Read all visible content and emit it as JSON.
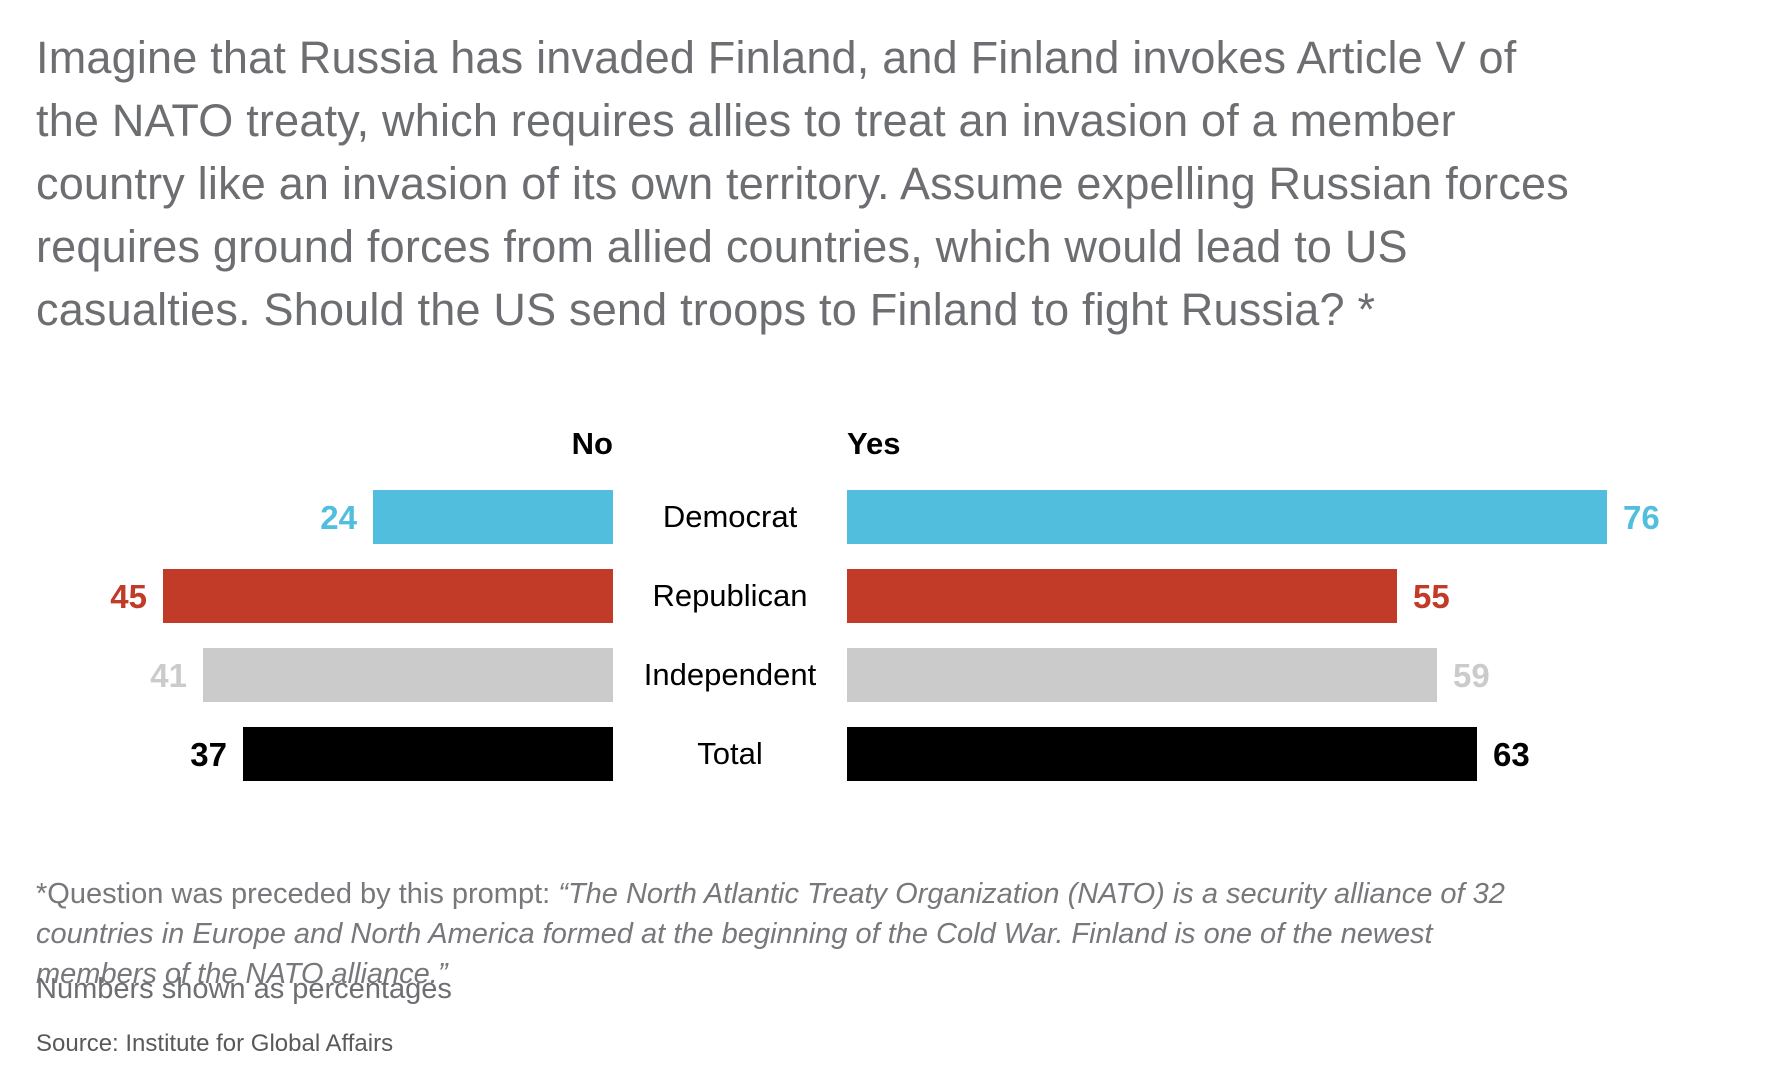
{
  "title_lines": [
    "Imagine that Russia has invaded Finland, and Finland invokes Article V of",
    "the NATO treaty, which requires allies to treat an invasion of a member",
    "country like an invasion of its own territory. Assume expelling Russian forces",
    "requires ground forces from allied countries, which would lead to US",
    "casualties. Should the US send troops to Finland to fight Russia? *"
  ],
  "chart_data": {
    "type": "bar",
    "orientation": "horizontal-diverging",
    "categories": [
      "Democrat",
      "Republican",
      "Independent",
      "Total"
    ],
    "series": [
      {
        "name": "No",
        "values": [
          24,
          45,
          41,
          37
        ]
      },
      {
        "name": "Yes",
        "values": [
          76,
          55,
          59,
          63
        ]
      }
    ],
    "category_colors": [
      "#52BEDD",
      "#C23A28",
      "#CBCBCB",
      "#000000"
    ],
    "units": "percent",
    "xlim": [
      0,
      100
    ],
    "legend_position": "column-headers",
    "grid": false
  },
  "footnote": {
    "prefix": "*Question was preceded by this prompt: ",
    "quote": "“The North Atlantic Treaty Organization (NATO) is a security alliance of 32 countries in Europe and North America formed at the beginning of the Cold War. Finland is one of the newest members of the NATO alliance.”"
  },
  "notes": {
    "percent_note": "Numbers shown as percentages",
    "source": "Source: Institute for Global Affairs"
  }
}
